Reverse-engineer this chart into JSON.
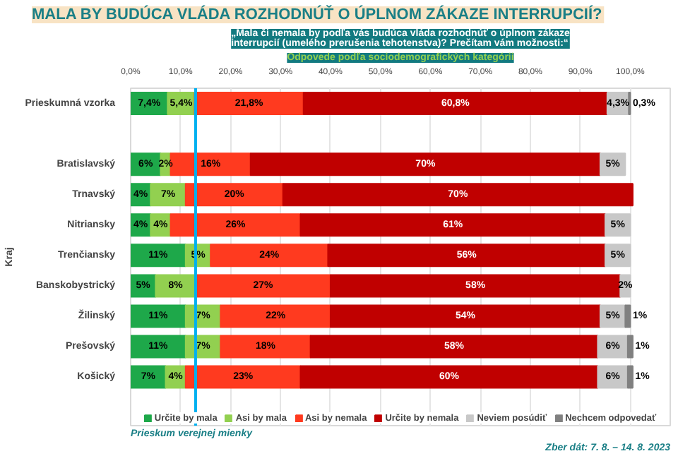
{
  "chart_data": {
    "type": "bar",
    "orientation": "horizontal",
    "stacked": true,
    "title": "MALA BY BUDÚCA VLÁDA ROZHODNÚŤ O ÚPLNOM ZÁKAZE INTERRUPCIÍ?",
    "subtitle": "„Mala či nemala by podľa vás budúca vláda rozhodnúť o úplnom zákaze interrupcií (umelého prerušenia tehotenstva)? Prečítam vám možnosti:“",
    "ylabel": "Kraj",
    "annotations": [
      "Odpovede podľa sociodemografických kategórii",
      "Prieskum verejnej mienky",
      "Zber dát: 7. 8. – 14. 8. 2023"
    ],
    "categories": [
      "Prieskumná vzorka",
      null,
      "Bratislavský",
      "Trnavský",
      "Nitriansky",
      "Trenčiansky",
      "Banskobystrický",
      "Žilinský",
      "Prešovský",
      "Košický"
    ],
    "series": [
      {
        "name": "Určite by mala",
        "color": "#1ea84a",
        "values": [
          7.4,
          null,
          6,
          4,
          4,
          11,
          5,
          11,
          11,
          7
        ],
        "value_labels": [
          "7,4%",
          null,
          "6%",
          "4%",
          "4%",
          "11%",
          "5%",
          "11%",
          "11%",
          "7%"
        ]
      },
      {
        "name": "Asi by mala",
        "color": "#92d050",
        "values": [
          5.4,
          null,
          2,
          7,
          4,
          5,
          8,
          7,
          7,
          4
        ],
        "value_labels": [
          "5,4%",
          null,
          "2%",
          "7%",
          "4%",
          "5%",
          "8%",
          "7%",
          "7%",
          "4%"
        ]
      },
      {
        "name": "Asi by nemala",
        "color": "#ff3a1f",
        "values": [
          21.8,
          null,
          16,
          19.5,
          26,
          23.5,
          27,
          22,
          18,
          23
        ],
        "value_labels": [
          "21,8%",
          null,
          "16%",
          "20%",
          "26%",
          "24%",
          "27%",
          "22%",
          "18%",
          "23%"
        ]
      },
      {
        "name": "Určite by nemala",
        "color": "#c00000",
        "values": [
          60.8,
          null,
          70,
          70,
          61,
          55.5,
          58,
          54,
          57.5,
          59.5
        ],
        "value_labels": [
          "60,8%",
          null,
          "70%",
          "70%",
          "61%",
          "56%",
          "58%",
          "54%",
          "58%",
          "60%"
        ]
      },
      {
        "name": "Neviem posúdiť",
        "color": "#c8c8c8",
        "values": [
          4.3,
          null,
          5,
          null,
          5,
          5,
          2,
          5,
          6,
          6
        ],
        "value_labels": [
          "4,3%",
          null,
          "5%",
          null,
          "5%",
          "5%",
          "2%",
          "5%",
          "6%",
          "6%"
        ]
      },
      {
        "name": "Nechcem odpovedať",
        "color": "#808080",
        "values": [
          0.3,
          null,
          null,
          null,
          null,
          null,
          null,
          1,
          1,
          1
        ],
        "value_labels": [
          "0,3%",
          null,
          null,
          null,
          null,
          null,
          null,
          "1%",
          "1%",
          "1%"
        ]
      }
    ],
    "xlim": [
      0,
      108
    ],
    "xticks": [
      {
        "value": 0,
        "label": "0,0%"
      },
      {
        "value": 10,
        "label": "10,0%"
      },
      {
        "value": 20,
        "label": "20,0%"
      },
      {
        "value": 30,
        "label": "30,0%"
      },
      {
        "value": 40,
        "label": "40,0%"
      },
      {
        "value": 50,
        "label": "50,0%"
      },
      {
        "value": 60,
        "label": "60,0%"
      },
      {
        "value": 70,
        "label": "70,0%"
      },
      {
        "value": 80,
        "label": "80,0%"
      },
      {
        "value": 90,
        "label": "90,0%"
      },
      {
        "value": 100,
        "label": "100,0%"
      }
    ],
    "ref_lines": [
      {
        "axis": "x",
        "value": 13,
        "color": "#00b0f0"
      }
    ],
    "grid": "x",
    "legend": "bottom"
  }
}
